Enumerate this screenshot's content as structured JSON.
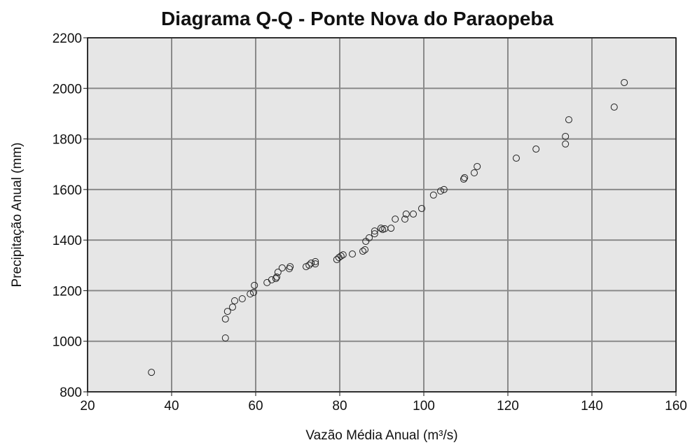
{
  "chart_data": {
    "type": "scatter",
    "title": "Diagrama Q-Q - Ponte Nova do Paraopeba",
    "x_label": "Vazão Média Anual (m³/s)",
    "y_label": "Precipitação Anual (mm)",
    "xlim": [
      20,
      160
    ],
    "ylim": [
      800,
      2200
    ],
    "xticks": [
      20,
      40,
      60,
      80,
      100,
      120,
      140,
      160
    ],
    "yticks": [
      800,
      1000,
      1200,
      1400,
      1600,
      1800,
      2000,
      2200
    ],
    "grid": true,
    "color": "#222222",
    "x": [
      35.2,
      52.8,
      52.8,
      53.3,
      54.5,
      55,
      56.8,
      58.7,
      59.5,
      59.7,
      62.7,
      63.8,
      64.8,
      65,
      65.3,
      66.3,
      68,
      68.2,
      72,
      72.7,
      73.2,
      74.2,
      74.2,
      79.3,
      79.8,
      80.3,
      80.8,
      83,
      85.5,
      86,
      86.2,
      87,
      88.3,
      88.3,
      89.8,
      90.2,
      90.7,
      92.2,
      93.2,
      95.5,
      95.8,
      97.5,
      99.5,
      102.3,
      104,
      104.8,
      109.5,
      109.7,
      112,
      112.7,
      122,
      126.7,
      133.7,
      133.7,
      134.5,
      145.3,
      147.7
    ],
    "values": [
      877,
      1013,
      1088,
      1118,
      1135,
      1160,
      1168,
      1187,
      1193,
      1221,
      1232,
      1243,
      1248,
      1254,
      1273,
      1290,
      1287,
      1295,
      1295,
      1301,
      1309,
      1306,
      1315,
      1323,
      1331,
      1337,
      1342,
      1345,
      1356,
      1362,
      1395,
      1409,
      1425,
      1436,
      1447,
      1442,
      1445,
      1447,
      1483,
      1483,
      1503,
      1503,
      1525,
      1578,
      1594,
      1600,
      1641,
      1647,
      1666,
      1691,
      1724,
      1760,
      1780,
      1810,
      1876,
      1926,
      2023
    ]
  }
}
